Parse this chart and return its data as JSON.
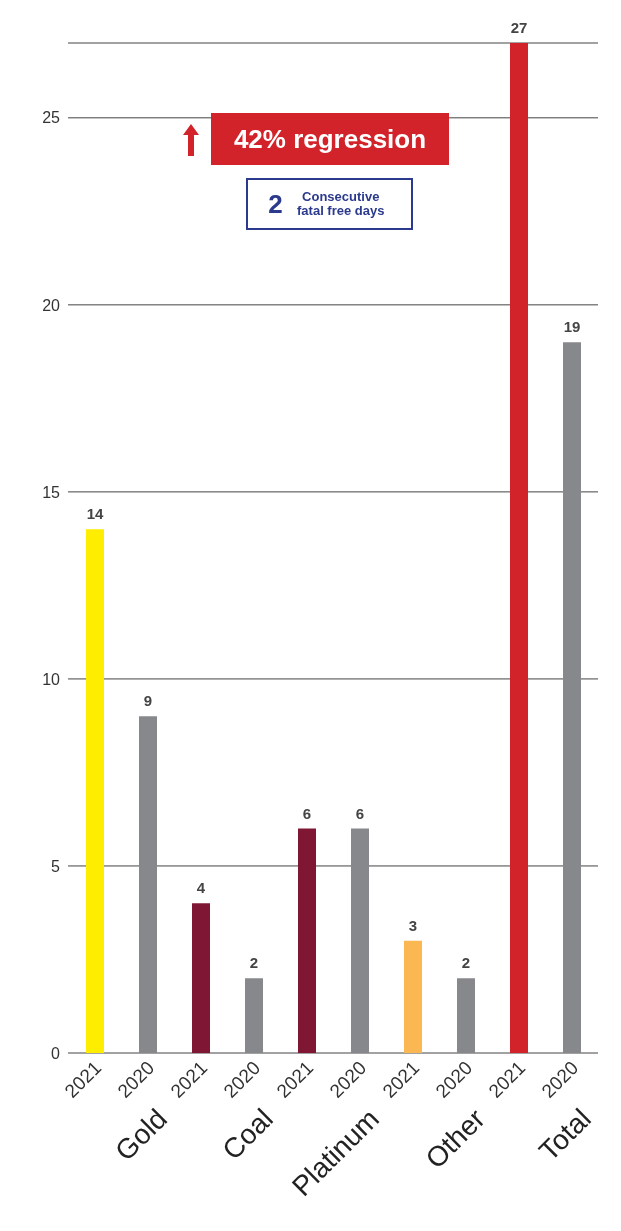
{
  "chart_data": {
    "type": "bar",
    "categories": [
      "2021",
      "2020",
      "2021",
      "2020",
      "2021",
      "2020",
      "2021",
      "2020",
      "2021",
      "2020"
    ],
    "values": [
      14,
      9,
      4,
      2,
      6,
      6,
      3,
      2,
      27,
      19
    ],
    "colors": [
      "#ffed00",
      "#87888c",
      "#7f1734",
      "#87888c",
      "#7f1734",
      "#87888c",
      "#fbb752",
      "#87888c",
      "#d2232a",
      "#87888c"
    ],
    "ylim": [
      0,
      27
    ],
    "yticks": [
      0,
      5,
      10,
      15,
      20,
      25
    ],
    "grid": "y",
    "data_labels": true,
    "annotations": [
      "42% regression",
      "2",
      "Consecutive fatal free days",
      "Gold",
      "Coal",
      "Platinum",
      "Other",
      "Total"
    ]
  }
}
